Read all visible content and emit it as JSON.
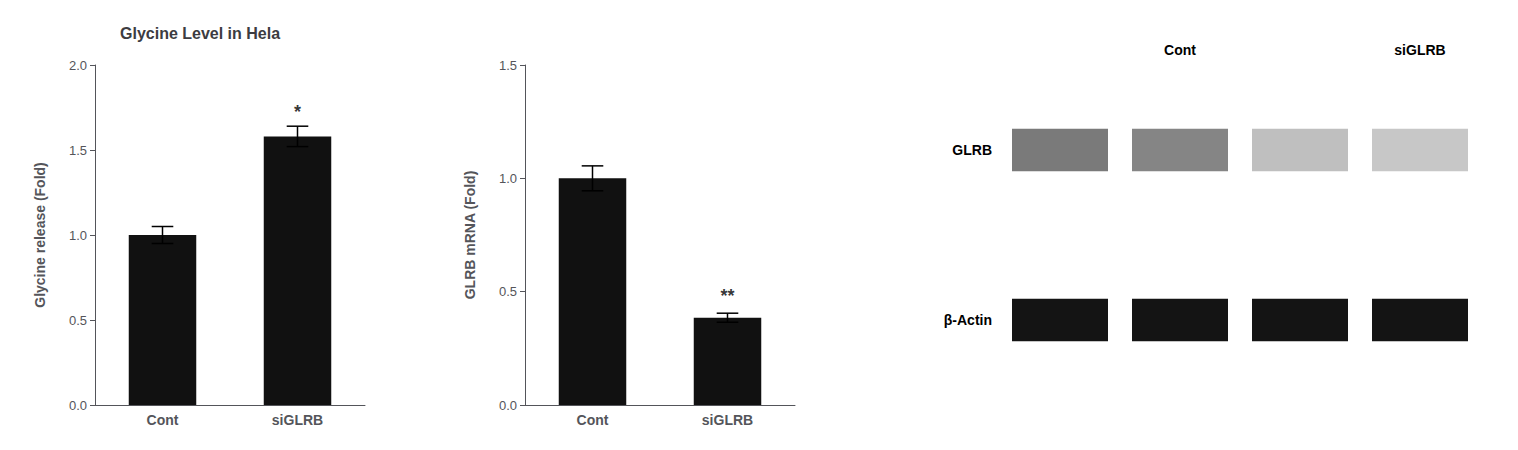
{
  "chart_data": [
    {
      "type": "bar",
      "title": "Glycine Level in Hela",
      "categories": [
        "Cont",
        "siGLRB"
      ],
      "values": [
        1.0,
        1.58
      ],
      "errors": [
        0.05,
        0.06
      ],
      "color": "#111111",
      "ylabel": "Glycine release (Fold)",
      "ylim": [
        0,
        2.0
      ],
      "yticks": [
        {
          "value": 0,
          "label": "0.0"
        },
        0.5,
        {
          "value": 1.0,
          "label": "1.0"
        },
        1.5,
        {
          "value": 2.0,
          "label": "2.0"
        }
      ],
      "grid": false,
      "annotations": [
        {
          "text": "*",
          "x": "siGLRB",
          "y": 1.67
        }
      ]
    },
    {
      "type": "bar",
      "categories": [
        "Cont",
        "siGLRB"
      ],
      "values": [
        1.0,
        0.385
      ],
      "errors": [
        0.055,
        0.02
      ],
      "color": "#111111",
      "ylabel": "GLRB mRNA (Fold)",
      "ylim": [
        0,
        1.5
      ],
      "yticks": [
        {
          "value": 0,
          "label": "0.0"
        },
        0.5,
        {
          "value": 1.0,
          "label": "1.0"
        },
        1.5
      ],
      "grid": false,
      "annotations": [
        {
          "text": "**",
          "x": "siGLRB",
          "y": 0.44
        }
      ]
    },
    {
      "type": "heatmap",
      "categories": [
        null,
        "Cont",
        null,
        "siGLRB"
      ],
      "rows": [
        "GLRB",
        "β-Actin"
      ],
      "cells": [
        [
          0.52,
          0.48,
          0.25,
          0.22
        ],
        [
          0.92,
          0.92,
          0.92,
          0.92
        ]
      ],
      "clim": [
        0,
        1
      ]
    }
  ]
}
